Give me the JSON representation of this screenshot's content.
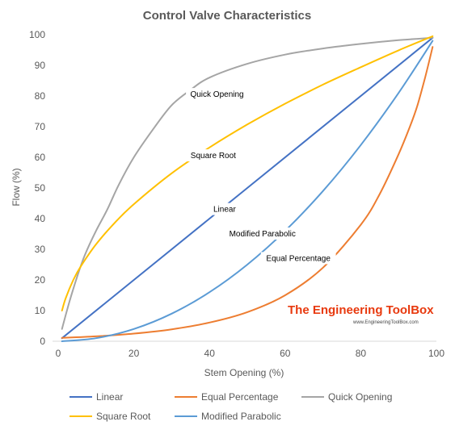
{
  "chart_data": {
    "type": "line",
    "title": "Control Valve Characteristics",
    "xlabel": "Stem Opening  (%)",
    "ylabel": "Flow  (%)",
    "xlim": [
      0,
      100
    ],
    "ylim": [
      0,
      100
    ],
    "xticks": [
      0,
      20,
      40,
      60,
      80,
      100
    ],
    "yticks": [
      0,
      10,
      20,
      30,
      40,
      50,
      60,
      70,
      80,
      90,
      100
    ],
    "grid": false,
    "legend_position": "bottom",
    "series": [
      {
        "name": "Linear",
        "color": "#4472c4",
        "x": [
          1,
          99
        ],
        "y": [
          1,
          99
        ]
      },
      {
        "name": "Equal Percentage",
        "color": "#ed7d31",
        "x": [
          1,
          10,
          20,
          30,
          40,
          50,
          60,
          70,
          80,
          85,
          90,
          93,
          95,
          97,
          99
        ],
        "y": [
          1.1,
          1.6,
          2.5,
          3.9,
          6.1,
          9.5,
          15,
          24,
          38,
          48,
          61,
          70,
          77,
          86,
          96
        ]
      },
      {
        "name": "Quick Opening",
        "color": "#a5a5a5",
        "x": [
          1,
          3,
          5,
          7,
          10,
          13,
          16,
          20,
          25,
          30,
          35,
          40,
          50,
          60,
          70,
          80,
          90,
          99
        ],
        "y": [
          4,
          13,
          21,
          28,
          36,
          43,
          51,
          60,
          69,
          77,
          82,
          86,
          90.5,
          93.5,
          95.5,
          97,
          98.2,
          99
        ]
      },
      {
        "name": "Square Root",
        "color": "#ffc000",
        "x": [
          1,
          2,
          4,
          6,
          10,
          15,
          20,
          30,
          40,
          50,
          60,
          70,
          80,
          90,
          99
        ],
        "y": [
          10,
          14.1,
          20,
          24.5,
          31.6,
          38.7,
          44.7,
          54.8,
          63.2,
          70.7,
          77.5,
          83.7,
          89.4,
          94.9,
          99.5
        ]
      },
      {
        "name": "Modified Parabolic",
        "color": "#5b9bd5",
        "x": [
          1,
          10,
          20,
          30,
          40,
          50,
          60,
          70,
          80,
          90,
          99
        ],
        "y": [
          0,
          1,
          4,
          9,
          16,
          25,
          36,
          49,
          64,
          81,
          98
        ]
      }
    ],
    "annotations": [
      {
        "text": "Quick Opening",
        "x": 42,
        "y": 80.5
      },
      {
        "text": "Square Root",
        "x": 41,
        "y": 60.5
      },
      {
        "text": "Linear",
        "x": 44,
        "y": 43
      },
      {
        "text": "Modified Parabolic",
        "x": 54,
        "y": 35
      },
      {
        "text": "Equal Percentage",
        "x": 63.5,
        "y": 27
      }
    ]
  },
  "watermark": {
    "brand": "The Engineering ToolBox",
    "url": "www.EngineeringToolBox.com"
  }
}
